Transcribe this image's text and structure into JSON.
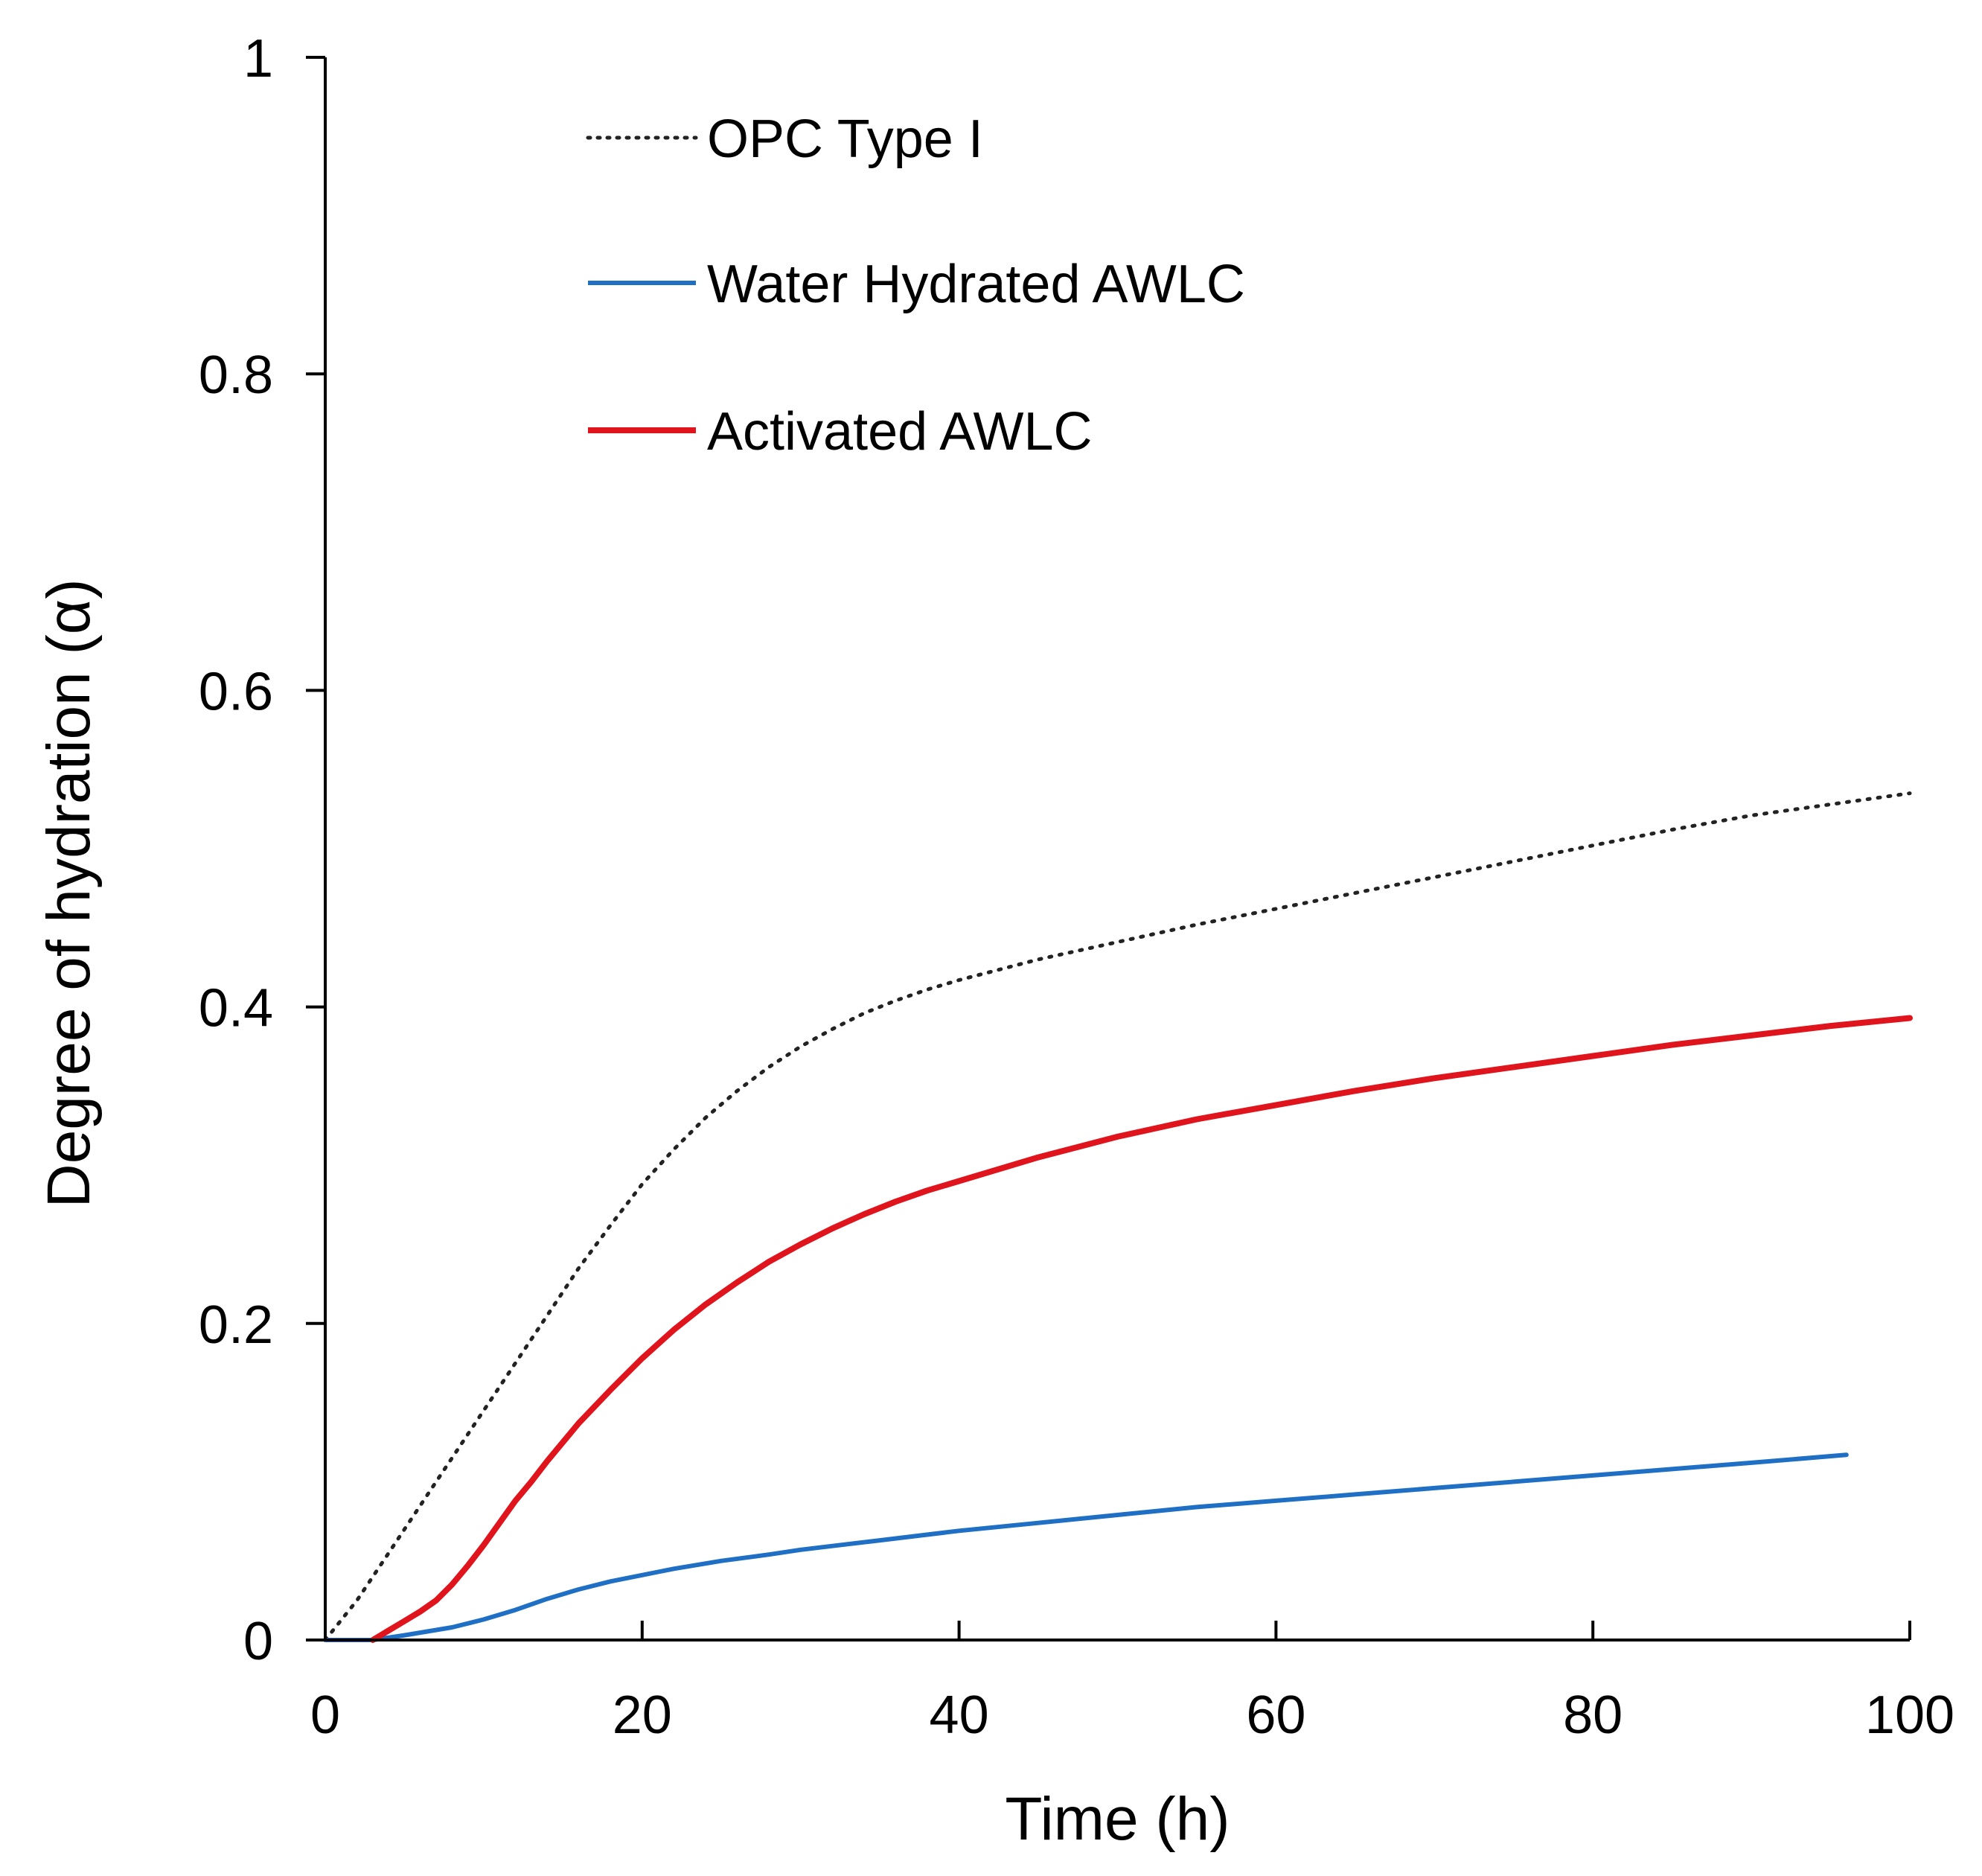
{
  "chart_data": {
    "type": "line",
    "title": "",
    "xlabel": "Time (h)",
    "ylabel": "Degree of hydration (α)",
    "xlim": [
      0,
      100
    ],
    "ylim": [
      0,
      1
    ],
    "xticks": [
      0,
      20,
      40,
      60,
      80,
      100
    ],
    "yticks": [
      0,
      0.2,
      0.4,
      0.6,
      0.8,
      1
    ],
    "x_tick_labels": [
      "0",
      "20",
      "40",
      "60",
      "80",
      "100"
    ],
    "y_tick_labels": [
      "0",
      "0.2",
      "0.4",
      "0.6",
      "0.8",
      "1"
    ],
    "grid": false,
    "legend_position": "top-left",
    "series": [
      {
        "name": "OPC Type I",
        "color": "#222222",
        "style": "dotted",
        "x": [
          0,
          2,
          4,
          6,
          8,
          10,
          12,
          14,
          16,
          18,
          20,
          22,
          24,
          26,
          28,
          30,
          32,
          34,
          36,
          38,
          40,
          45,
          50,
          55,
          60,
          65,
          70,
          75,
          80,
          85,
          90,
          95,
          100
        ],
        "y": [
          0,
          0.025,
          0.055,
          0.085,
          0.115,
          0.145,
          0.175,
          0.205,
          0.235,
          0.262,
          0.288,
          0.31,
          0.33,
          0.347,
          0.362,
          0.375,
          0.386,
          0.396,
          0.404,
          0.411,
          0.417,
          0.43,
          0.441,
          0.452,
          0.462,
          0.472,
          0.482,
          0.492,
          0.502,
          0.512,
          0.521,
          0.528,
          0.535
        ]
      },
      {
        "name": "Water Hydrated AWLC",
        "color": "#1f6fc5",
        "style": "solid",
        "x": [
          0,
          3,
          5,
          8,
          10,
          12,
          14,
          16,
          18,
          20,
          22,
          25,
          28,
          30,
          35,
          40,
          45,
          50,
          55,
          60,
          65,
          70,
          75,
          80,
          85,
          90,
          96
        ],
        "y": [
          0,
          0,
          0.003,
          0.008,
          0.013,
          0.019,
          0.026,
          0.032,
          0.037,
          0.041,
          0.045,
          0.05,
          0.054,
          0.057,
          0.063,
          0.069,
          0.074,
          0.079,
          0.084,
          0.088,
          0.092,
          0.096,
          0.1,
          0.104,
          0.108,
          0.112,
          0.117
        ]
      },
      {
        "name": "Activated AWLC",
        "color": "#e0141c",
        "style": "solid",
        "x": [
          3,
          4,
          5,
          6,
          7,
          8,
          9,
          10,
          11,
          12,
          13,
          14,
          15,
          16,
          18,
          20,
          22,
          24,
          26,
          28,
          30,
          32,
          34,
          36,
          38,
          40,
          45,
          50,
          55,
          60,
          65,
          70,
          75,
          80,
          85,
          90,
          95,
          100
        ],
        "y": [
          0,
          0.006,
          0.012,
          0.018,
          0.025,
          0.035,
          0.047,
          0.06,
          0.074,
          0.088,
          0.1,
          0.113,
          0.125,
          0.137,
          0.158,
          0.178,
          0.196,
          0.212,
          0.226,
          0.239,
          0.25,
          0.26,
          0.269,
          0.277,
          0.284,
          0.29,
          0.305,
          0.318,
          0.329,
          0.338,
          0.347,
          0.355,
          0.362,
          0.369,
          0.376,
          0.382,
          0.388,
          0.393
        ]
      }
    ]
  }
}
